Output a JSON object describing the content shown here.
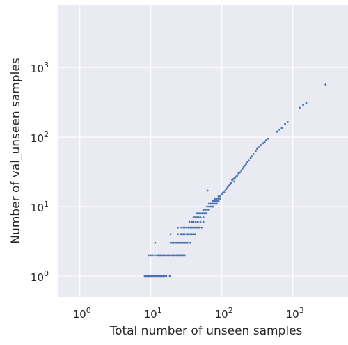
{
  "chart_data": {
    "type": "scatter",
    "title": "",
    "xlabel": "Total number of unseen samples",
    "ylabel": "Number of val_unseen samples",
    "xscale": "log",
    "yscale": "log",
    "xlim": [
      0.5,
      6000
    ],
    "ylim": [
      0.5,
      8000
    ],
    "grid": true,
    "background": "#eaeaf2",
    "point_color": "#4c72b0",
    "x_ticks": [
      {
        "base": "10",
        "exp": "0",
        "value": 1
      },
      {
        "base": "10",
        "exp": "1",
        "value": 10
      },
      {
        "base": "10",
        "exp": "2",
        "value": 100
      },
      {
        "base": "10",
        "exp": "3",
        "value": 1000
      }
    ],
    "y_ticks": [
      {
        "base": "10",
        "exp": "0",
        "value": 1
      },
      {
        "base": "10",
        "exp": "1",
        "value": 10
      },
      {
        "base": "10",
        "exp": "2",
        "value": 100
      },
      {
        "base": "10",
        "exp": "3",
        "value": 1000
      }
    ],
    "points": [
      [
        8.2,
        1
      ],
      [
        8.5,
        1
      ],
      [
        8.8,
        1
      ],
      [
        9,
        1
      ],
      [
        9.3,
        1
      ],
      [
        9.6,
        1
      ],
      [
        10,
        1
      ],
      [
        10.3,
        1
      ],
      [
        10.6,
        1
      ],
      [
        11,
        1
      ],
      [
        11.4,
        1
      ],
      [
        11.8,
        1
      ],
      [
        12.2,
        1
      ],
      [
        12.7,
        1
      ],
      [
        13.2,
        1
      ],
      [
        13.7,
        1
      ],
      [
        14.3,
        1
      ],
      [
        15,
        1
      ],
      [
        15.6,
        1
      ],
      [
        16.5,
        1
      ],
      [
        18.5,
        1
      ],
      [
        9.3,
        2
      ],
      [
        10,
        2
      ],
      [
        10.6,
        2
      ],
      [
        11.4,
        2
      ],
      [
        12.2,
        2
      ],
      [
        12.7,
        2
      ],
      [
        13.2,
        2
      ],
      [
        13.7,
        2
      ],
      [
        14.3,
        2
      ],
      [
        15,
        2
      ],
      [
        15.6,
        2
      ],
      [
        16.5,
        2
      ],
      [
        17.3,
        2
      ],
      [
        18,
        2
      ],
      [
        19,
        2
      ],
      [
        20,
        2
      ],
      [
        21,
        2
      ],
      [
        22,
        2
      ],
      [
        23,
        2
      ],
      [
        24,
        2
      ],
      [
        25,
        2
      ],
      [
        26,
        2
      ],
      [
        27,
        2
      ],
      [
        28,
        2
      ],
      [
        29,
        2
      ],
      [
        30,
        2
      ],
      [
        11.5,
        3
      ],
      [
        19,
        3
      ],
      [
        20,
        3
      ],
      [
        21,
        3
      ],
      [
        22,
        3
      ],
      [
        23,
        3
      ],
      [
        24,
        3
      ],
      [
        25,
        3
      ],
      [
        26,
        3
      ],
      [
        27,
        3
      ],
      [
        28,
        3
      ],
      [
        29,
        3
      ],
      [
        30,
        3
      ],
      [
        31,
        3
      ],
      [
        33,
        3
      ],
      [
        36,
        3
      ],
      [
        19,
        4
      ],
      [
        24,
        4
      ],
      [
        26,
        4
      ],
      [
        27,
        4
      ],
      [
        28,
        4
      ],
      [
        29,
        4
      ],
      [
        30,
        4
      ],
      [
        32,
        4
      ],
      [
        33,
        4
      ],
      [
        34,
        4
      ],
      [
        36,
        4
      ],
      [
        38,
        4
      ],
      [
        40,
        4
      ],
      [
        42,
        4
      ],
      [
        24,
        5
      ],
      [
        27,
        5
      ],
      [
        29,
        5
      ],
      [
        30,
        5
      ],
      [
        32,
        5
      ],
      [
        34,
        5
      ],
      [
        36,
        5
      ],
      [
        38,
        5
      ],
      [
        40,
        5
      ],
      [
        42,
        5
      ],
      [
        45,
        5
      ],
      [
        48,
        5
      ],
      [
        52,
        5
      ],
      [
        35,
        6
      ],
      [
        38,
        6
      ],
      [
        40,
        6
      ],
      [
        43,
        6
      ],
      [
        46,
        6
      ],
      [
        50,
        6
      ],
      [
        55,
        6
      ],
      [
        40,
        7
      ],
      [
        42,
        7
      ],
      [
        45,
        7
      ],
      [
        47,
        7
      ],
      [
        50,
        7
      ],
      [
        55,
        7
      ],
      [
        45,
        8
      ],
      [
        48,
        8
      ],
      [
        50,
        8
      ],
      [
        53,
        8
      ],
      [
        56,
        8
      ],
      [
        60,
        8
      ],
      [
        55,
        9
      ],
      [
        58,
        9
      ],
      [
        62,
        9
      ],
      [
        66,
        9
      ],
      [
        62,
        10
      ],
      [
        66,
        10
      ],
      [
        70,
        10
      ],
      [
        75,
        10
      ],
      [
        66,
        11
      ],
      [
        70,
        11
      ],
      [
        75,
        11
      ],
      [
        80,
        11
      ],
      [
        85,
        11
      ],
      [
        75,
        12
      ],
      [
        80,
        12
      ],
      [
        85,
        12
      ],
      [
        90,
        12
      ],
      [
        80,
        13
      ],
      [
        85,
        13
      ],
      [
        90,
        13
      ],
      [
        95,
        13
      ],
      [
        90,
        14
      ],
      [
        95,
        14
      ],
      [
        100,
        15
      ],
      [
        104,
        16
      ],
      [
        108,
        16
      ],
      [
        63,
        17
      ],
      [
        112,
        17
      ],
      [
        116,
        18
      ],
      [
        121,
        19
      ],
      [
        126,
        20
      ],
      [
        131,
        21
      ],
      [
        136,
        22
      ],
      [
        140,
        24
      ],
      [
        146,
        25
      ],
      [
        150,
        23
      ],
      [
        153,
        26
      ],
      [
        160,
        27
      ],
      [
        165,
        28
      ],
      [
        172,
        30
      ],
      [
        180,
        31
      ],
      [
        188,
        33
      ],
      [
        195,
        35
      ],
      [
        203,
        37
      ],
      [
        212,
        39
      ],
      [
        220,
        41
      ],
      [
        230,
        44
      ],
      [
        240,
        46
      ],
      [
        255,
        50
      ],
      [
        265,
        53
      ],
      [
        280,
        57
      ],
      [
        300,
        63
      ],
      [
        315,
        68
      ],
      [
        335,
        72
      ],
      [
        355,
        77
      ],
      [
        380,
        82
      ],
      [
        400,
        85
      ],
      [
        420,
        90
      ],
      [
        450,
        95
      ],
      [
        600,
        120
      ],
      [
        650,
        128
      ],
      [
        700,
        135
      ],
      [
        780,
        155
      ],
      [
        850,
        165
      ],
      [
        1250,
        265
      ],
      [
        1400,
        290
      ],
      [
        1550,
        310
      ],
      [
        2900,
        570
      ]
    ]
  }
}
